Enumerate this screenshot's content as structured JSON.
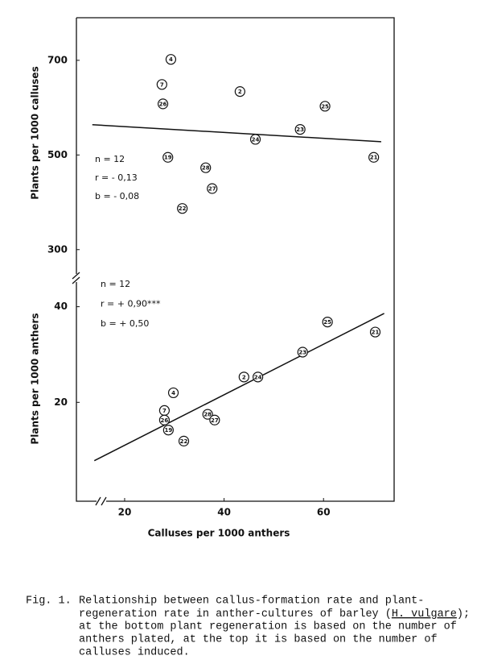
{
  "chart_data": [
    {
      "type": "scatter",
      "ylabel": "Plants per 1000 calluses",
      "xlim": [
        10.3,
        74.2
      ],
      "ylim": [
        240,
        790
      ],
      "yticks": [
        300,
        500,
        700
      ],
      "x": [
        29.3,
        27.5,
        27.7,
        43.2,
        60.3,
        55.3,
        46.3,
        28.7,
        70.1,
        36.3,
        37.6,
        31.6
      ],
      "y": [
        702,
        649,
        608,
        634,
        603,
        554,
        533,
        495,
        495,
        473,
        429,
        387
      ],
      "point_labels": [
        "4",
        "7",
        "26",
        "2",
        "25",
        "23",
        "24",
        "19",
        "21",
        "28",
        "27",
        "22"
      ],
      "fit_line": {
        "x": [
          13.5,
          71.6
        ],
        "y": [
          564,
          528
        ]
      },
      "stats": [
        "n = 12",
        "r = - 0,13",
        "b = - 0,08"
      ]
    },
    {
      "type": "scatter",
      "ylabel": "Plants per 1000 anthers",
      "xlabel": "Calluses per 1000 anthers",
      "xlim": [
        10.3,
        74.2
      ],
      "ylim": [
        0,
        46
      ],
      "yticks": [
        20,
        40
      ],
      "xticks": [
        20,
        40,
        60
      ],
      "x": [
        29.8,
        28,
        28,
        28.8,
        31.9,
        36.7,
        38.1,
        44,
        46.8,
        55.8,
        60.8,
        70.4
      ],
      "y": [
        22.0,
        18.3,
        16.3,
        14.2,
        11.9,
        17.5,
        16.3,
        25.3,
        25.3,
        30.5,
        36.8,
        34.7
      ],
      "point_labels": [
        "4",
        "7",
        "26",
        "19",
        "22",
        "28",
        "27",
        "2",
        "24",
        "23",
        "25",
        "21"
      ],
      "fit_line": {
        "x": [
          13.9,
          72.2
        ],
        "y": [
          7.8,
          38.6
        ]
      },
      "stats": [
        "n = 12",
        "r = + 0,90***",
        "b = + 0,50"
      ]
    }
  ],
  "caption": {
    "label": "Fig. 1.",
    "lines": [
      "Relationship between callus-formation rate and plant-",
      [
        "regeneration rate in anther-cultures of barley (",
        "H. vulgare",
        ");"
      ],
      "at the bottom plant regeneration is based on the number of",
      "anthers plated, at the top it is based on the number of",
      "calluses induced."
    ]
  }
}
